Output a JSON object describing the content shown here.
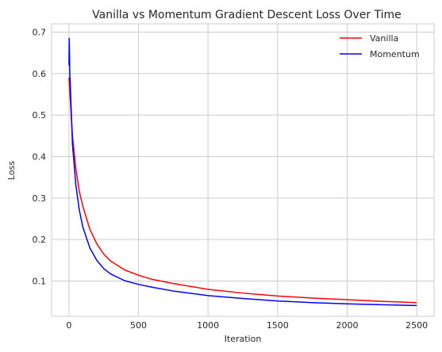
{
  "chart_data": {
    "type": "line",
    "title": "Vanilla vs Momentum Gradient Descent Loss Over Time",
    "xlabel": "Iteration",
    "ylabel": "Loss",
    "xlim": [
      -125,
      2625
    ],
    "ylim": [
      0.015,
      0.72
    ],
    "xticks": [
      0,
      500,
      1000,
      1500,
      2000,
      2500
    ],
    "yticks": [
      0.1,
      0.2,
      0.3,
      0.4,
      0.5,
      0.6,
      0.7
    ],
    "grid": true,
    "legend_position": "top-right",
    "series": [
      {
        "name": "Vanilla",
        "color": "#ff0000",
        "points": [
          [
            0,
            0.59
          ],
          [
            25,
            0.45
          ],
          [
            50,
            0.37
          ],
          [
            75,
            0.315
          ],
          [
            100,
            0.28
          ],
          [
            150,
            0.225
          ],
          [
            200,
            0.19
          ],
          [
            250,
            0.165
          ],
          [
            300,
            0.148
          ],
          [
            400,
            0.127
          ],
          [
            500,
            0.114
          ],
          [
            600,
            0.104
          ],
          [
            750,
            0.094
          ],
          [
            1000,
            0.08
          ],
          [
            1250,
            0.071
          ],
          [
            1500,
            0.064
          ],
          [
            1750,
            0.059
          ],
          [
            2000,
            0.055
          ],
          [
            2250,
            0.051
          ],
          [
            2500,
            0.048
          ]
        ]
      },
      {
        "name": "Momentum",
        "color": "#0000ff",
        "points": [
          [
            0,
            0.62
          ],
          [
            2,
            0.685
          ],
          [
            4,
            0.65
          ],
          [
            6,
            0.6
          ],
          [
            10,
            0.57
          ],
          [
            25,
            0.43
          ],
          [
            50,
            0.33
          ],
          [
            75,
            0.27
          ],
          [
            100,
            0.23
          ],
          [
            150,
            0.18
          ],
          [
            200,
            0.15
          ],
          [
            250,
            0.13
          ],
          [
            300,
            0.117
          ],
          [
            400,
            0.101
          ],
          [
            500,
            0.092
          ],
          [
            600,
            0.085
          ],
          [
            750,
            0.076
          ],
          [
            1000,
            0.065
          ],
          [
            1250,
            0.058
          ],
          [
            1500,
            0.052
          ],
          [
            1750,
            0.048
          ],
          [
            2000,
            0.045
          ],
          [
            2250,
            0.043
          ],
          [
            2500,
            0.041
          ]
        ]
      }
    ]
  }
}
